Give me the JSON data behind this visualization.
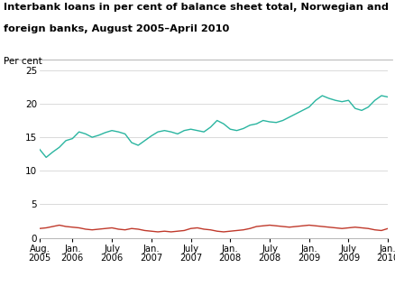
{
  "title_line1": "Interbank loans in per cent of balance sheet total, Norwegian and",
  "title_line2": "foreign banks, August 2005–April 2010",
  "ylabel": "Per cent",
  "ylim": [
    0,
    25
  ],
  "yticks": [
    0,
    5,
    10,
    15,
    20,
    25
  ],
  "x_tick_labels": [
    "Aug.\n2005",
    "Jan.\n2006",
    "July\n2006",
    "Jan.\n2007",
    "July\n2007",
    "Jan.\n2008",
    "July\n2008",
    "Jan.\n2009",
    "July\n2009",
    "Jan.\n2010"
  ],
  "x_tick_positions": [
    0,
    5,
    11,
    17,
    23,
    29,
    35,
    41,
    47,
    53
  ],
  "norwegian_color": "#c0392b",
  "foreign_color": "#2ab5a0",
  "background_color": "#ffffff",
  "norwegian_data": [
    1.4,
    1.5,
    1.7,
    1.9,
    1.7,
    1.6,
    1.5,
    1.3,
    1.2,
    1.3,
    1.4,
    1.5,
    1.3,
    1.2,
    1.4,
    1.3,
    1.1,
    1.0,
    0.9,
    1.0,
    0.9,
    1.0,
    1.1,
    1.4,
    1.5,
    1.3,
    1.2,
    1.0,
    0.9,
    1.0,
    1.1,
    1.2,
    1.4,
    1.7,
    1.8,
    1.9,
    1.8,
    1.7,
    1.6,
    1.7,
    1.8,
    1.9,
    1.8,
    1.7,
    1.6,
    1.5,
    1.4,
    1.5,
    1.6,
    1.5,
    1.4,
    1.2,
    1.1,
    1.4
  ],
  "foreign_data": [
    13.2,
    12.0,
    12.8,
    13.5,
    14.5,
    14.8,
    15.8,
    15.5,
    15.0,
    15.3,
    15.7,
    16.0,
    15.8,
    15.5,
    14.2,
    13.8,
    14.5,
    15.2,
    15.8,
    16.0,
    15.8,
    15.5,
    16.0,
    16.2,
    16.0,
    15.8,
    16.5,
    17.5,
    17.0,
    16.2,
    16.0,
    16.3,
    16.8,
    17.0,
    17.5,
    17.3,
    17.2,
    17.5,
    18.0,
    18.5,
    19.0,
    19.5,
    20.5,
    21.2,
    20.8,
    20.5,
    20.3,
    20.5,
    19.3,
    19.0,
    19.5,
    20.5,
    21.2,
    21.0
  ]
}
